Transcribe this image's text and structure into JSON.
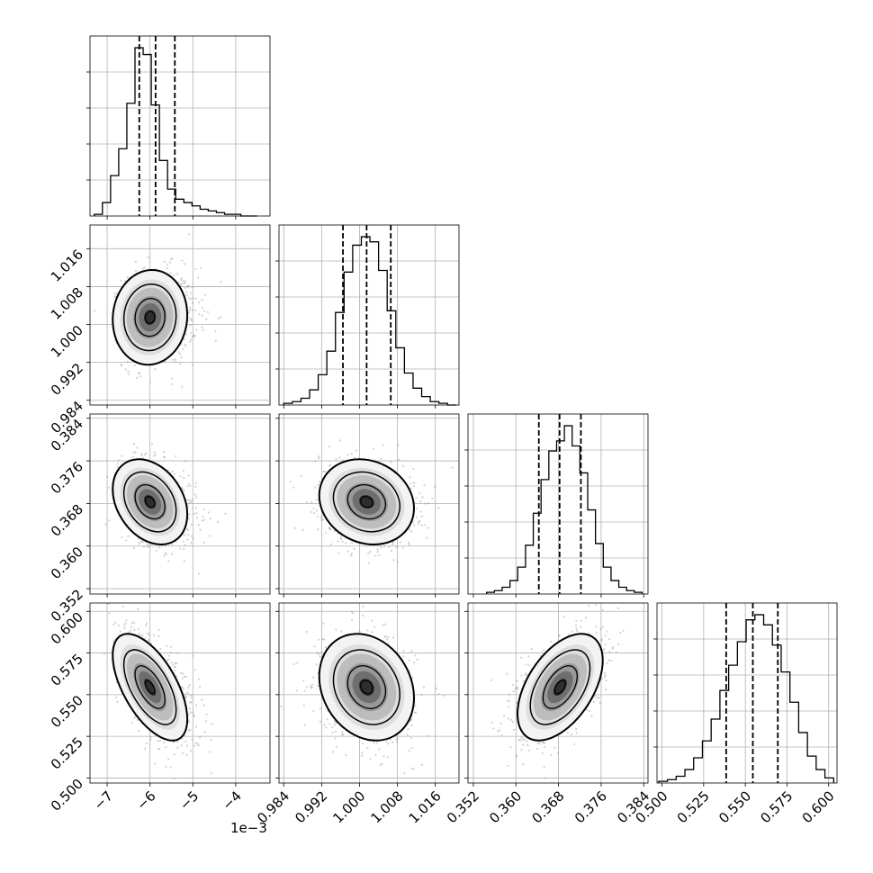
{
  "chart_data": {
    "type": "corner",
    "grid": true,
    "colors": {
      "hist": "#000000",
      "points": "#9a9a9a",
      "density": "#000000",
      "grid": "#b0b0b0"
    },
    "parameters": [
      {
        "lim": [
          -7.4,
          -3.2
        ],
        "ticks": [
          -7,
          -6,
          -5,
          -4
        ],
        "tick_labels": [
          "−7",
          "−6",
          "−5",
          "−4"
        ],
        "offset_label": "1e−3",
        "quantiles": [
          -6.25,
          -5.87,
          -5.42
        ],
        "mode": -6.0,
        "sd_left": 0.32,
        "sd_right": 0.55,
        "hist_edges_lo": -7.3,
        "hist_edges_hi": -3.5,
        "hist_bins": 20,
        "hist_counts": [
          1,
          8,
          24,
          40,
          67,
          100,
          96,
          66,
          33,
          16,
          10,
          8,
          6,
          4,
          3,
          2,
          1,
          1,
          0,
          0
        ]
      },
      {
        "lim": [
          0.983,
          1.021
        ],
        "ticks": [
          0.984,
          0.992,
          1.0,
          1.008,
          1.016
        ],
        "tick_labels": [
          "0.984",
          "0.992",
          "1.000",
          "1.008",
          "1.016"
        ],
        "quantiles": [
          0.9965,
          1.0015,
          1.0066
        ],
        "mode": 1.0015,
        "sd_left": 0.005,
        "sd_right": 0.005,
        "hist_edges_lo": 0.984,
        "hist_edges_hi": 1.0204,
        "hist_bins": 20,
        "hist_counts": [
          1,
          2,
          4,
          9,
          18,
          32,
          55,
          79,
          95,
          100,
          97,
          80,
          56,
          34,
          19,
          10,
          5,
          2,
          1,
          0
        ]
      },
      {
        "lim": [
          0.351,
          0.3848
        ],
        "ticks": [
          0.352,
          0.36,
          0.368,
          0.376,
          0.384
        ],
        "tick_labels": [
          "0.352",
          "0.360",
          "0.368",
          "0.376",
          "0.384"
        ],
        "quantiles": [
          0.3643,
          0.3682,
          0.3722
        ],
        "mode": 0.3683,
        "sd_left": 0.004,
        "sd_right": 0.004,
        "hist_edges_lo": 0.3545,
        "hist_edges_hi": 0.3837,
        "hist_bins": 20,
        "hist_counts": [
          1,
          2,
          4,
          8,
          16,
          29,
          48,
          68,
          85,
          91,
          100,
          88,
          72,
          50,
          30,
          16,
          8,
          4,
          2,
          1
        ]
      },
      {
        "lim": [
          0.497,
          0.605
        ],
        "ticks": [
          0.5,
          0.525,
          0.55,
          0.575,
          0.6
        ],
        "tick_labels": [
          "0.500",
          "0.525",
          "0.550",
          "0.575",
          "0.600"
        ],
        "quantiles": [
          0.5385,
          0.5545,
          0.5695
        ],
        "mode": 0.5545,
        "sd_left": 0.016,
        "sd_right": 0.016,
        "hist_edges_lo": 0.498,
        "hist_edges_hi": 0.603,
        "hist_bins": 20,
        "hist_counts": [
          1,
          2,
          4,
          8,
          15,
          25,
          38,
          55,
          70,
          84,
          97,
          100,
          94,
          82,
          66,
          48,
          30,
          16,
          8,
          3
        ]
      }
    ],
    "correlations": {
      "1-0": 0.05,
      "2-0": -0.3,
      "2-1": -0.15,
      "3-0": -0.6,
      "3-1": -0.2,
      "3-2": 0.5
    }
  }
}
